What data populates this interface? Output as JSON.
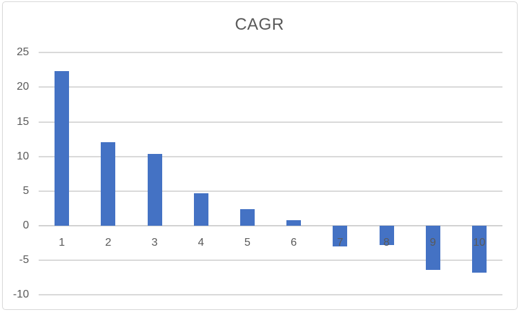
{
  "chart_data": {
    "type": "bar",
    "title": "CAGR",
    "categories": [
      "1",
      "2",
      "3",
      "4",
      "5",
      "6",
      "7",
      "8",
      "9",
      "10"
    ],
    "values": [
      22.3,
      12.1,
      10.4,
      4.7,
      2.4,
      0.8,
      -3.0,
      -2.8,
      -6.4,
      -6.8
    ],
    "xlabel": "",
    "ylabel": "",
    "ylim": [
      -10,
      25
    ],
    "ytick_step": 5,
    "yticks": [
      25,
      20,
      15,
      10,
      5,
      0,
      -5,
      -10
    ],
    "grid": true,
    "legend": false,
    "series_name": "CAGR"
  },
  "colors": {
    "bar": "#4472C4",
    "gridline": "#D9D9D9",
    "axis_line": "#D2D2D2",
    "text": "#595959",
    "border": "#D7D7D7",
    "background": "#FFFFFF"
  }
}
